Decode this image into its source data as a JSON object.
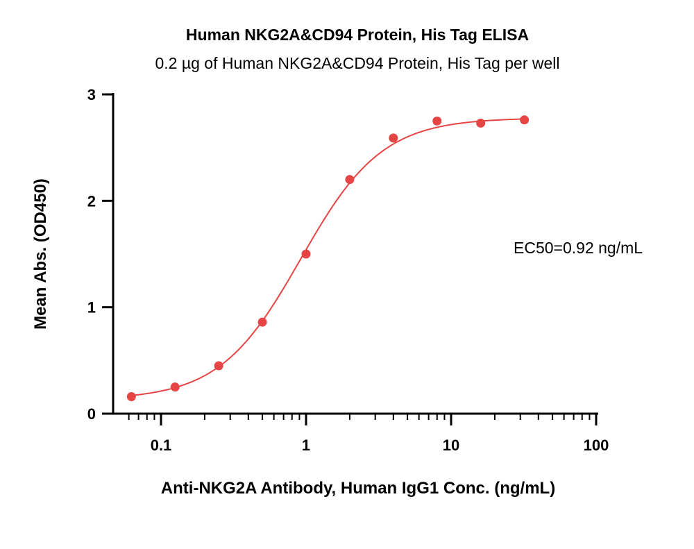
{
  "chart_data": {
    "type": "scatter",
    "title": "Human NKG2A&CD94 Protein, His Tag ELISA",
    "subtitle": "0.2 µg of Human NKG2A&CD94 Protein, His Tag per well",
    "xlabel": "Anti-NKG2A Antibody, Human IgG1 Conc. (ng/mL)",
    "ylabel": "Mean Abs. (OD450)",
    "x_scale": "log",
    "xlim": [
      0.06,
      100
    ],
    "ylim": [
      0,
      3
    ],
    "x_ticks": [
      0.1,
      1,
      10,
      100
    ],
    "x_tick_labels": [
      "0.1",
      "1",
      "10",
      "100"
    ],
    "y_ticks": [
      0,
      1,
      2,
      3
    ],
    "y_tick_labels": [
      "0",
      "1",
      "2",
      "3"
    ],
    "series": [
      {
        "x": [
          0.0625,
          0.125,
          0.25,
          0.5,
          1,
          2,
          4,
          8,
          16,
          32
        ],
        "y": [
          0.16,
          0.25,
          0.45,
          0.86,
          1.5,
          2.2,
          2.59,
          2.75,
          2.73,
          2.76
        ],
        "color": "#e64545"
      }
    ],
    "fit_curve": {
      "model": "4PL",
      "bottom": 0.13,
      "top": 2.78,
      "ec50": 0.92,
      "hill": 1.55,
      "color": "#e64545"
    },
    "annotation": "EC50=0.92 ng/mL",
    "grid": false,
    "legend": "none"
  }
}
